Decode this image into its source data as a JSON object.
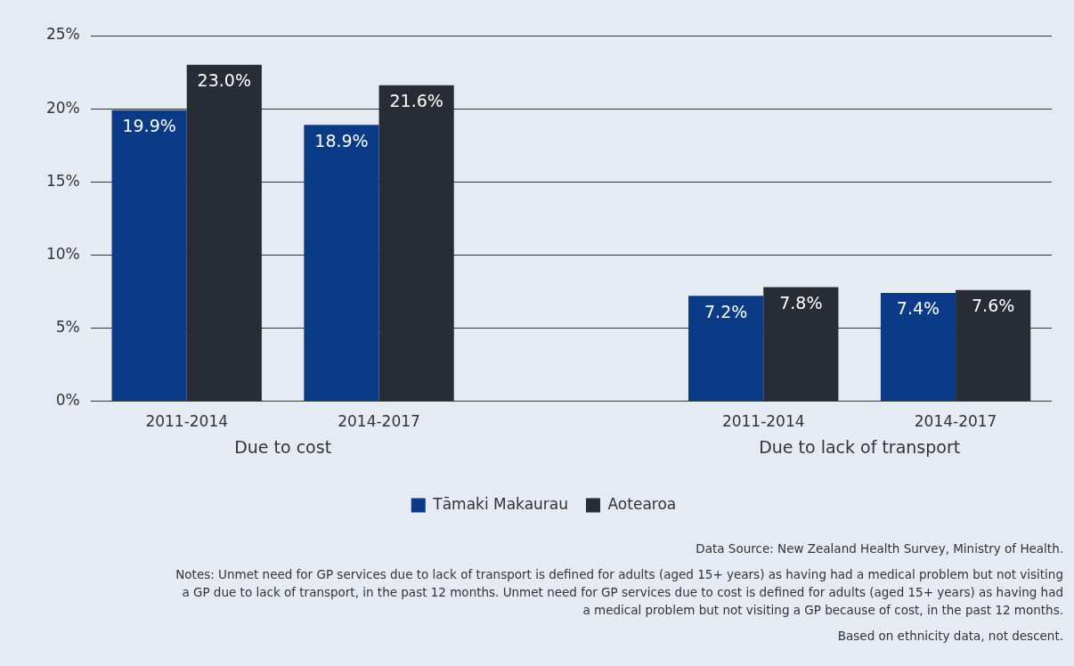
{
  "chart_data": {
    "type": "bar",
    "categories": [
      "2011-2014",
      "2014-2017",
      null,
      "2011-2014",
      "2014-2017"
    ],
    "series": [
      {
        "name": "Tāmaki Makaurau",
        "color": "#0b3a87",
        "values": [
          19.9,
          18.9,
          null,
          7.2,
          7.4
        ],
        "value_labels": [
          "19.9%",
          "18.9%",
          null,
          "7.2%",
          "7.4%"
        ]
      },
      {
        "name": "Aotearoa",
        "color": "#282d35",
        "values": [
          23.0,
          21.6,
          null,
          7.8,
          7.6
        ],
        "value_labels": [
          "23.0%",
          "21.6%",
          null,
          "7.8%",
          "7.6%"
        ]
      }
    ],
    "ylim": [
      0,
      25
    ],
    "yticks": [
      {
        "value": 0,
        "label": "0%"
      },
      {
        "value": 5,
        "label": "5%"
      },
      {
        "value": 10,
        "label": "10%"
      },
      {
        "value": 15,
        "label": "15%"
      },
      {
        "value": 20,
        "label": "20%"
      },
      {
        "value": 25,
        "label": "25%"
      }
    ],
    "grid": "y",
    "legend": "bottom",
    "annotations": [
      "Due to cost",
      "Due to lack of transport",
      "Data Source: New Zealand Health Survey, Ministry of Health.",
      "Notes: Unmet need for GP services due to lack of transport is defined for adults (aged 15+ years) as having had a medical problem but not visiting a GP due to lack of transport, in the past 12 months. Unmet need for GP services due to cost is defined for adults (aged 15+ years) as having had a medical problem but not visiting a GP because of cost, in the past 12 months.",
      "Based on ethnicity data, not descent."
    ]
  }
}
